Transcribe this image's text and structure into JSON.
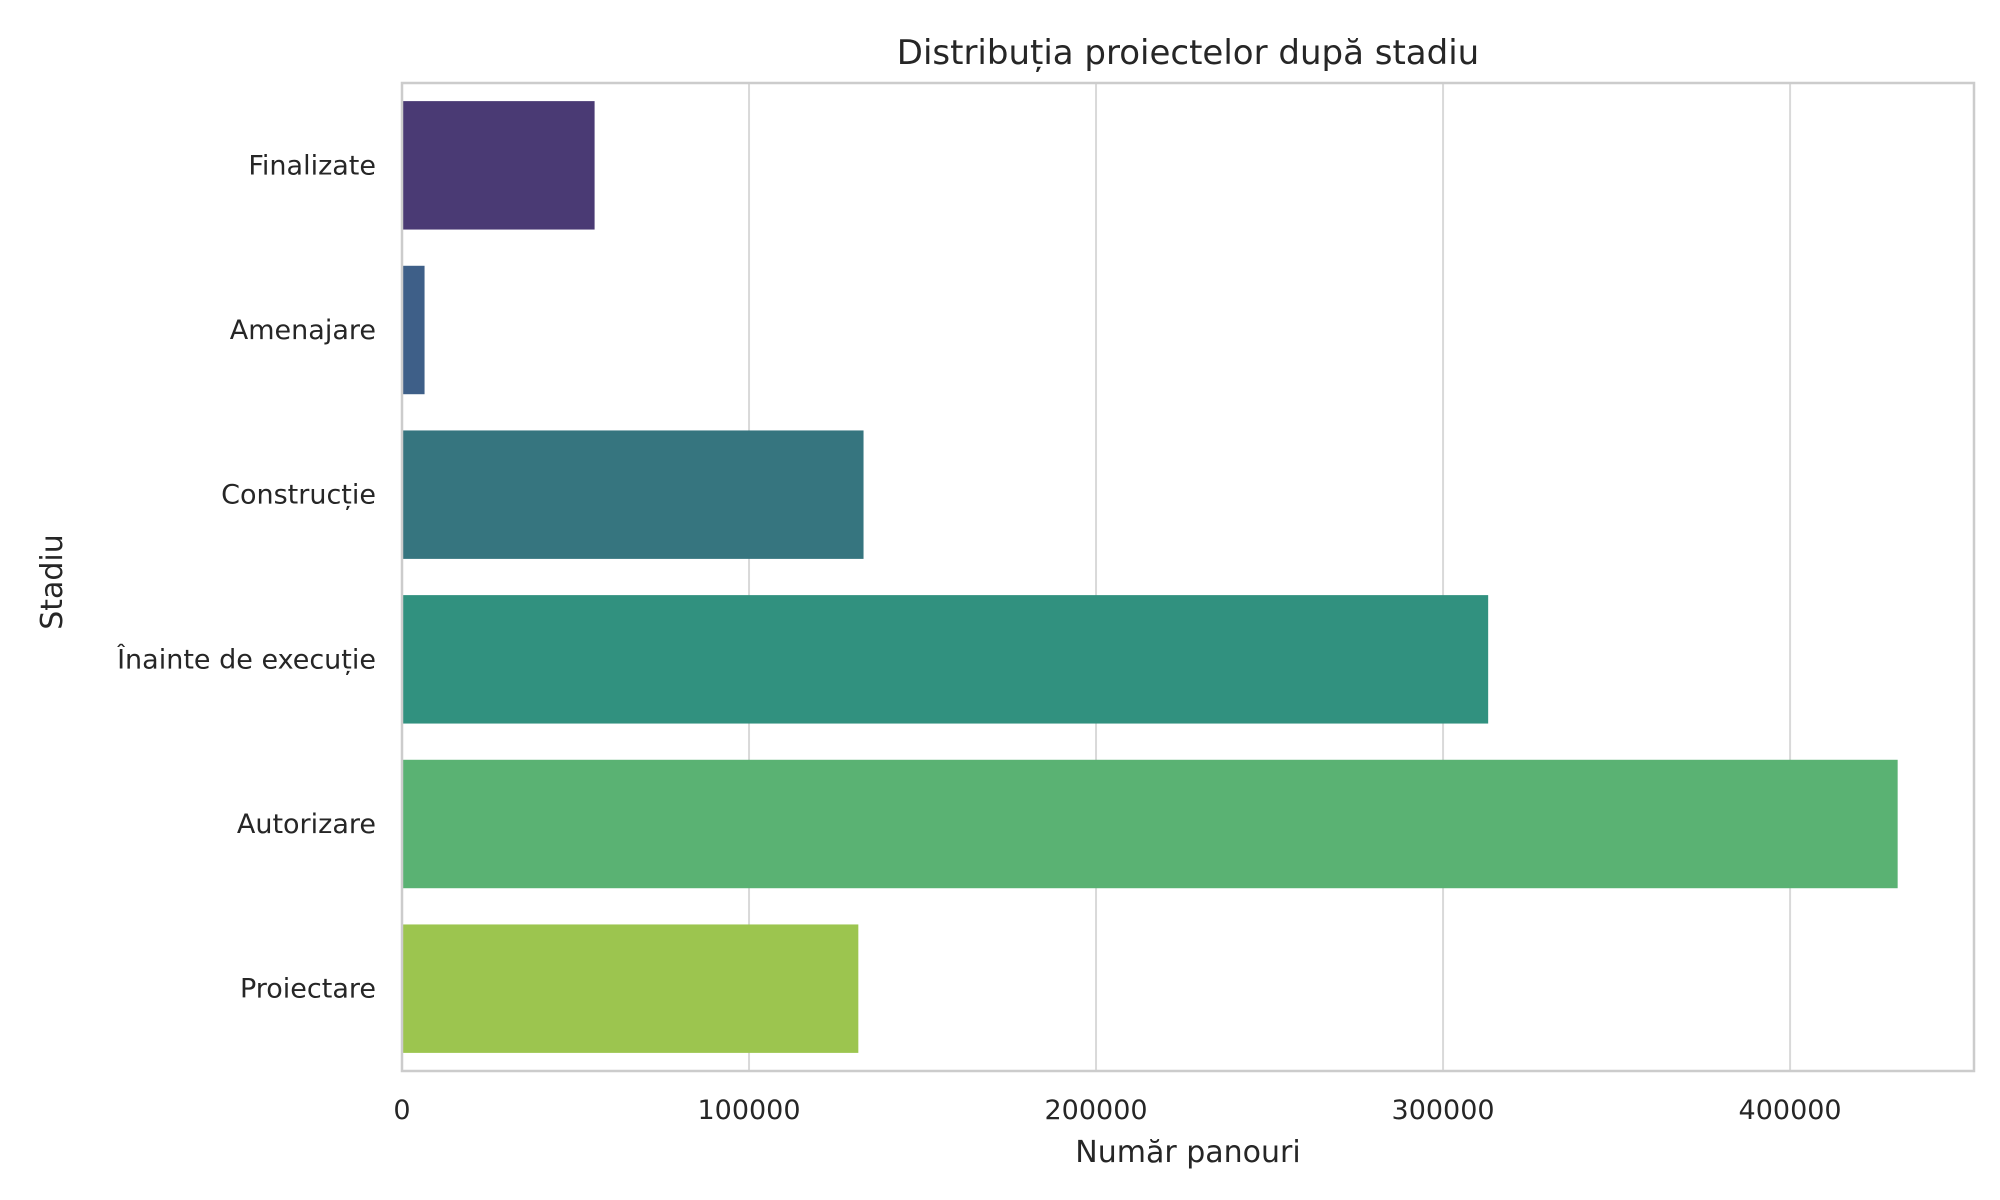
{
  "chart_data": {
    "type": "bar",
    "orientation": "horizontal",
    "title": "Distribuția proiectelor după stadiu",
    "xlabel": "Număr panouri",
    "ylabel": "Stadiu",
    "categories": [
      "Finalizate",
      "Amenajare",
      "Construcție",
      "Înainte de execuție",
      "Autorizare",
      "Proiectare"
    ],
    "values": [
      55500,
      6500,
      133000,
      313000,
      431000,
      131500
    ],
    "colors": [
      "#4a3a74",
      "#3e5f88",
      "#36757f",
      "#31917f",
      "#5ab273",
      "#9cc54f"
    ],
    "xlim": [
      0,
      453000
    ],
    "xticks": [
      0,
      100000,
      200000,
      300000,
      400000
    ],
    "xtick_labels": [
      "0",
      "100000",
      "200000",
      "300000",
      "400000"
    ],
    "grid": "vertical",
    "legend": "none"
  }
}
